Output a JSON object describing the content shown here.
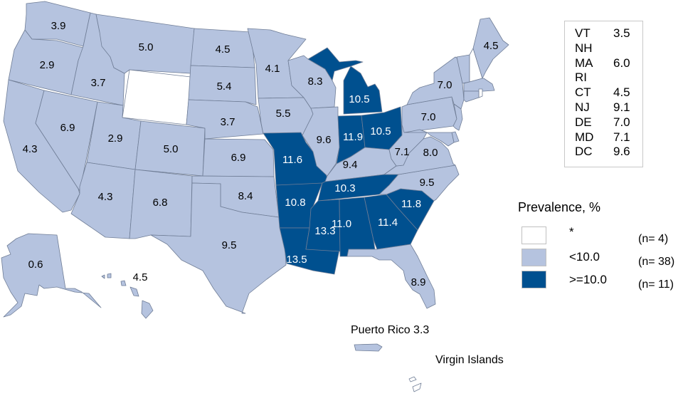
{
  "colors": {
    "none": "#ffffff",
    "low": "#b5c3df",
    "high": "#00508f",
    "border": "#6f7d96"
  },
  "states": [
    {
      "abbr": "WA",
      "value": "3.9",
      "class": "low"
    },
    {
      "abbr": "OR",
      "value": "2.9",
      "class": "low"
    },
    {
      "abbr": "CA",
      "value": "4.3",
      "class": "low"
    },
    {
      "abbr": "NV",
      "value": "6.9",
      "class": "low"
    },
    {
      "abbr": "ID",
      "value": "3.7",
      "class": "low"
    },
    {
      "abbr": "MT",
      "value": "5.0",
      "class": "low"
    },
    {
      "abbr": "WY",
      "value": "",
      "class": "none"
    },
    {
      "abbr": "UT",
      "value": "2.9",
      "class": "low"
    },
    {
      "abbr": "CO",
      "value": "5.0",
      "class": "low"
    },
    {
      "abbr": "AZ",
      "value": "4.3",
      "class": "low"
    },
    {
      "abbr": "NM",
      "value": "6.8",
      "class": "low"
    },
    {
      "abbr": "ND",
      "value": "4.5",
      "class": "low"
    },
    {
      "abbr": "SD",
      "value": "5.4",
      "class": "low"
    },
    {
      "abbr": "NE",
      "value": "3.7",
      "class": "low"
    },
    {
      "abbr": "KS",
      "value": "6.9",
      "class": "low"
    },
    {
      "abbr": "OK",
      "value": "8.4",
      "class": "low"
    },
    {
      "abbr": "TX",
      "value": "9.5",
      "class": "low"
    },
    {
      "abbr": "MN",
      "value": "4.1",
      "class": "low"
    },
    {
      "abbr": "IA",
      "value": "5.5",
      "class": "low"
    },
    {
      "abbr": "MO",
      "value": "11.6",
      "class": "high"
    },
    {
      "abbr": "AR",
      "value": "10.8",
      "class": "high"
    },
    {
      "abbr": "LA",
      "value": "13.5",
      "class": "high"
    },
    {
      "abbr": "WI",
      "value": "8.3",
      "class": "low"
    },
    {
      "abbr": "IL",
      "value": "9.6",
      "class": "low"
    },
    {
      "abbr": "MI",
      "value": "10.5",
      "class": "high"
    },
    {
      "abbr": "IN",
      "value": "11.9",
      "class": "high"
    },
    {
      "abbr": "OH",
      "value": "10.5",
      "class": "high"
    },
    {
      "abbr": "KY",
      "value": "9.4",
      "class": "low"
    },
    {
      "abbr": "TN",
      "value": "10.3",
      "class": "high"
    },
    {
      "abbr": "MS",
      "value": "13.3",
      "class": "high"
    },
    {
      "abbr": "AL",
      "value": "11.0",
      "class": "high"
    },
    {
      "abbr": "GA",
      "value": "11.4",
      "class": "high"
    },
    {
      "abbr": "SC",
      "value": "11.8",
      "class": "high"
    },
    {
      "abbr": "NC",
      "value": "9.5",
      "class": "low"
    },
    {
      "abbr": "VA",
      "value": "8.0",
      "class": "low"
    },
    {
      "abbr": "WV",
      "value": "7.1",
      "class": "low"
    },
    {
      "abbr": "FL",
      "value": "8.9",
      "class": "low"
    },
    {
      "abbr": "PA",
      "value": "7.0",
      "class": "low"
    },
    {
      "abbr": "NY",
      "value": "7.0",
      "class": "low"
    },
    {
      "abbr": "VT",
      "value": "3.5",
      "class": "low"
    },
    {
      "abbr": "NH",
      "value": "",
      "class": "none"
    },
    {
      "abbr": "ME",
      "value": "4.5",
      "class": "low"
    },
    {
      "abbr": "MA",
      "value": "6.0",
      "class": "low"
    },
    {
      "abbr": "RI",
      "value": "",
      "class": "none"
    },
    {
      "abbr": "CT",
      "value": "4.5",
      "class": "low"
    },
    {
      "abbr": "NJ",
      "value": "9.1",
      "class": "low"
    },
    {
      "abbr": "DE",
      "value": "7.0",
      "class": "low"
    },
    {
      "abbr": "MD",
      "value": "7.1",
      "class": "low"
    },
    {
      "abbr": "AK",
      "value": "0.6",
      "class": "low"
    },
    {
      "abbr": "HI",
      "value": "4.5",
      "class": "low"
    },
    {
      "abbr": "PR",
      "value": "3.3",
      "class": "low"
    },
    {
      "abbr": "VI",
      "value": "",
      "class": "none"
    }
  ],
  "small_states_box": [
    {
      "abbr": "VT",
      "value": "3.5"
    },
    {
      "abbr": "NH",
      "value": ""
    },
    {
      "abbr": "MA",
      "value": "6.0"
    },
    {
      "abbr": "RI",
      "value": ""
    },
    {
      "abbr": "CT",
      "value": "4.5"
    },
    {
      "abbr": "NJ",
      "value": "9.1"
    },
    {
      "abbr": "DE",
      "value": "7.0"
    },
    {
      "abbr": "MD",
      "value": "7.1"
    },
    {
      "abbr": "DC",
      "value": "9.6"
    }
  ],
  "legend": {
    "title": "Prevalence, %",
    "items": [
      {
        "label": "*",
        "count": "(n=  4)",
        "class": "none"
      },
      {
        "label": "<10.0",
        "count": "(n= 38)",
        "class": "low"
      },
      {
        "label": ">=10.0",
        "count": "(n= 11)",
        "class": "high"
      }
    ]
  },
  "territories": {
    "puerto_rico_label": "Puerto Rico 3.3",
    "virgin_islands_label": "Virgin Islands"
  }
}
